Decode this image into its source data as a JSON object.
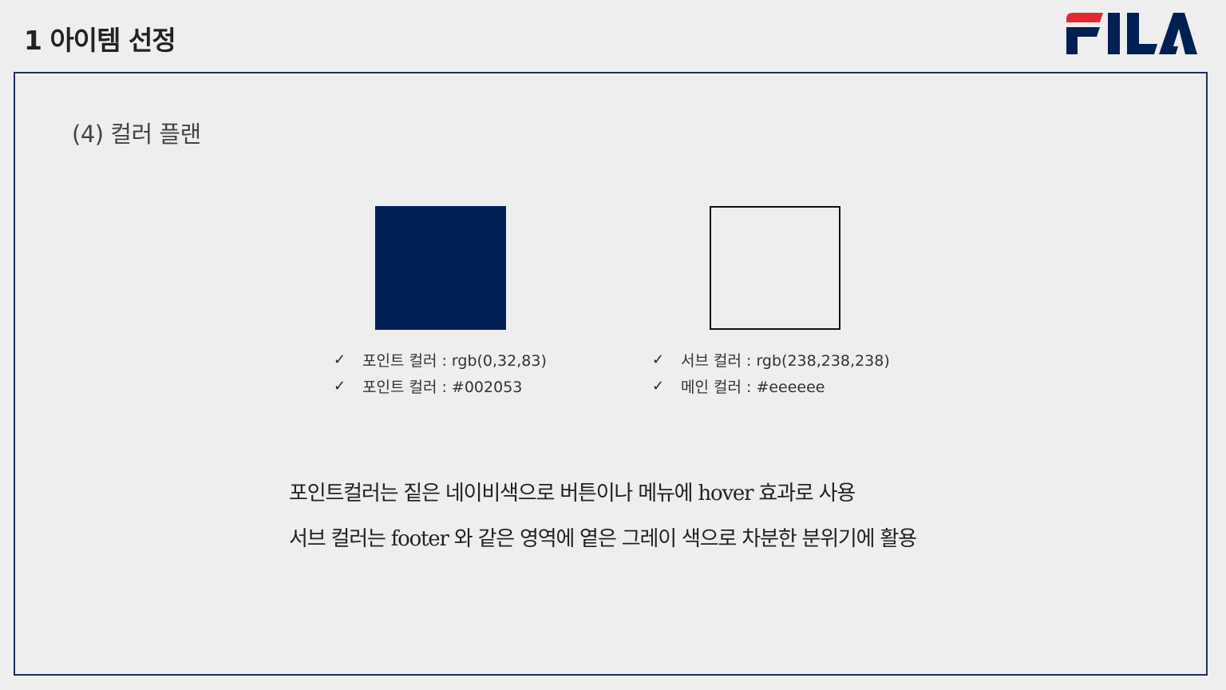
{
  "header": {
    "title": "1 아이템 선정",
    "logo_text": "FILA",
    "logo_colors": {
      "red": "#e3262f",
      "navy": "#002053"
    }
  },
  "section": {
    "title": "(4) 컬러 플랜"
  },
  "swatches": {
    "point": {
      "color": "#002053"
    },
    "sub": {
      "color": "#eeeeee"
    }
  },
  "point_color_specs": [
    {
      "icon": "checkmark-icon",
      "glyph": "✓",
      "text": "포인트 컬러 : rgb(0,32,83)"
    },
    {
      "icon": "checkmark-icon",
      "glyph": "✓",
      "text": "포인트 컬러 : #002053"
    }
  ],
  "sub_color_specs": [
    {
      "icon": "checkmark-icon",
      "glyph": "✓",
      "text": "서브 컬러 : rgb(238,238,238)"
    },
    {
      "icon": "checkmark-icon",
      "glyph": "✓",
      "text": "메인 컬러 : #eeeeee"
    }
  ],
  "description": {
    "line1": "포인트컬러는 짙은 네이비색으로 버튼이나 메뉴에 hover 효과로 사용",
    "line2": "서브 컬러는 footer 와 같은 영역에 옅은 그레이 색으로 차분한 분위기에 활용"
  }
}
